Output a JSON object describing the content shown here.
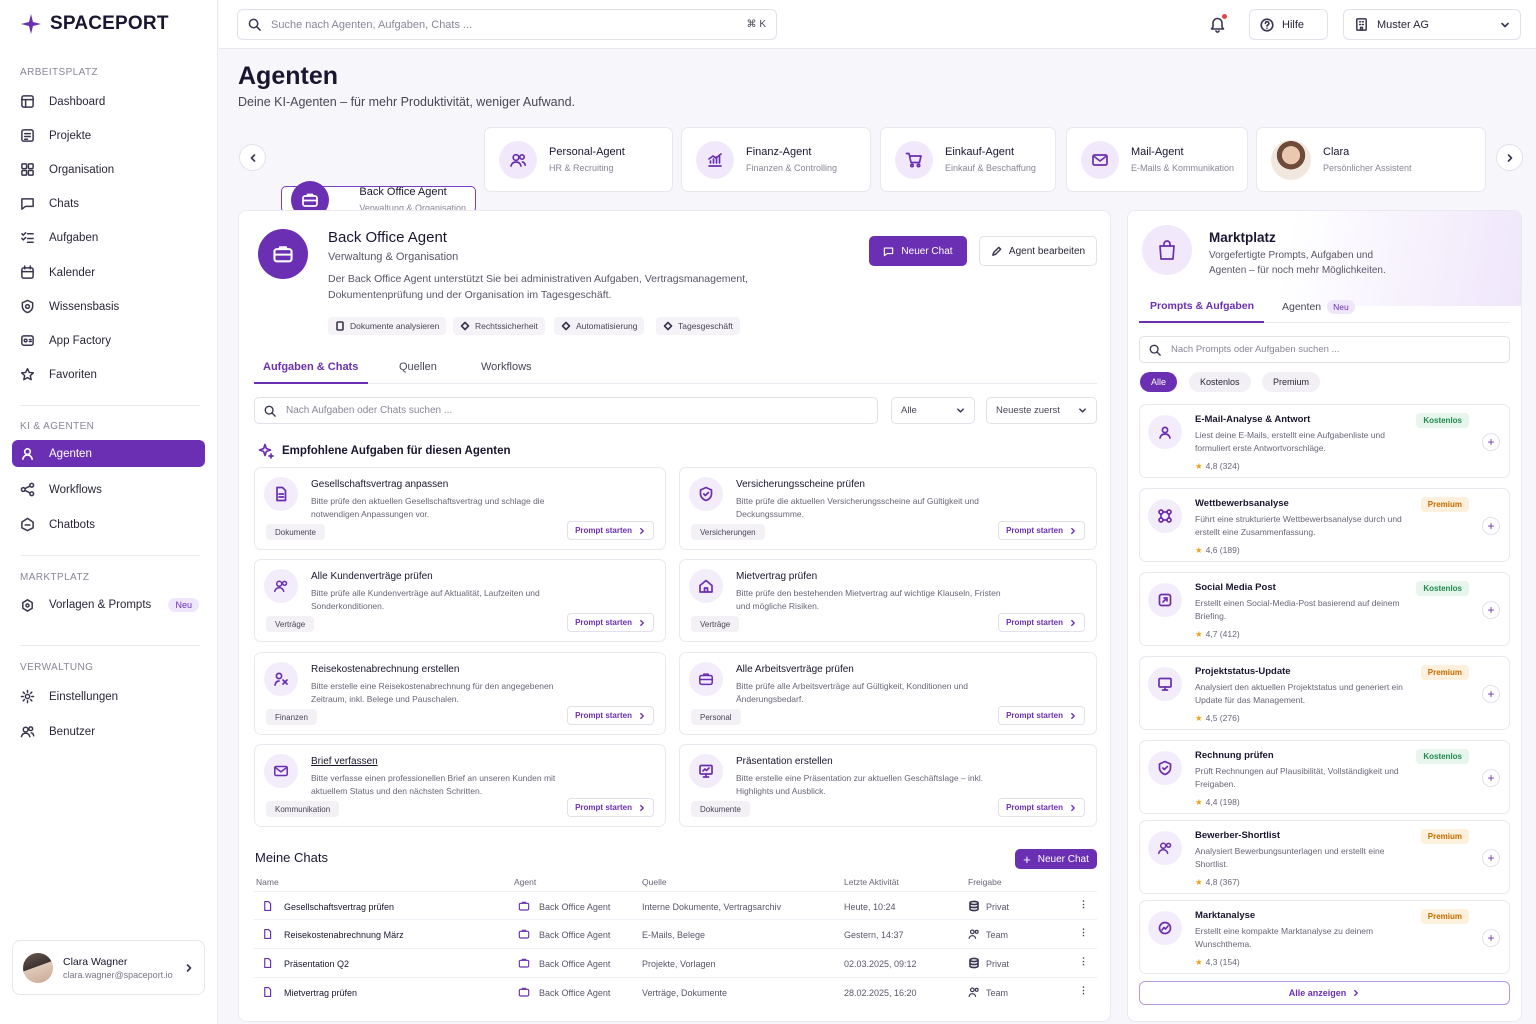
{
  "brand": {
    "name": "SPACEPORT"
  },
  "sidebar": {
    "sections": {
      "workspace": "ARBEITSPLATZ",
      "ai": "KI & AGENTEN",
      "market": "MARKTPLATZ",
      "admin": "VERWALTUNG"
    },
    "items": [
      {
        "label": "Dashboard",
        "icon": "dashboard-icon"
      },
      {
        "label": "Projekte",
        "icon": "folder-icon"
      },
      {
        "label": "Organisation",
        "icon": "organisation-icon"
      },
      {
        "label": "Chats",
        "icon": "chat-icon"
      },
      {
        "label": "Aufgaben",
        "icon": "tasks-icon"
      },
      {
        "label": "Kalender",
        "icon": "calendar-icon"
      },
      {
        "label": "Wissensbasis",
        "icon": "knowledge-icon"
      },
      {
        "label": "App Factory",
        "icon": "app-factory-icon"
      },
      {
        "label": "Favoriten",
        "icon": "star-icon"
      },
      {
        "label": "Agenten",
        "icon": "agent-icon",
        "active": true
      },
      {
        "label": "Workflows",
        "icon": "workflow-icon"
      },
      {
        "label": "Chatbots",
        "icon": "chatbot-icon"
      },
      {
        "label": "Vorlagen & Prompts",
        "icon": "templates-icon",
        "badge": "Neu"
      },
      {
        "label": "Einstellungen",
        "icon": "settings-icon"
      },
      {
        "label": "Benutzer",
        "icon": "users-icon"
      }
    ],
    "user": {
      "name": "Clara Wagner",
      "email": "clara.wagner@spaceport.io"
    }
  },
  "topbar": {
    "search_placeholder": "Suche nach Agenten, Aufgaben, Chats ...",
    "shortcut": "⌘ K",
    "help": "Hilfe",
    "org": "Muster AG"
  },
  "page": {
    "title": "Agenten",
    "subtitle": "Deine KI-Agenten – für mehr Produktivität, weniger Aufwand."
  },
  "agents": [
    {
      "name": "Back Office Agent",
      "desc": "Verwaltung & Organisation",
      "selected": true
    },
    {
      "name": "Personal-Agent",
      "desc": "HR & Recruiting"
    },
    {
      "name": "Finanz-Agent",
      "desc": "Finanzen & Controlling"
    },
    {
      "name": "Einkauf-Agent",
      "desc": "Einkauf & Beschaffung"
    },
    {
      "name": "Mail-Agent",
      "desc": "E-Mails & Kommunikation"
    },
    {
      "name": "Clara",
      "desc": "Persönlicher Assistent"
    }
  ],
  "detail": {
    "title": "Back Office Agent",
    "subtitle": "Verwaltung & Organisation",
    "description": "Der Back Office Agent unterstützt Sie bei administrativen Aufgaben, Vertragsmanagement, Dokumentenprüfung und der Organisation im Tagesgeschäft.",
    "chips": [
      "Dokumente analysieren",
      "Rechtssicherheit",
      "Automatisierung",
      "Tagesgeschäft"
    ],
    "new_chat": "Neuer Chat",
    "edit": "Agent bearbeiten",
    "tabs": [
      "Aufgaben & Chats",
      "Quellen",
      "Workflows"
    ],
    "search_placeholder": "Nach Aufgaben oder Chats suchen ...",
    "filter": "Alle",
    "sort": "Neueste zuerst",
    "recommended_title": "Empfohlene Aufgaben für diesen Agenten",
    "prompt_start": "Prompt starten",
    "tasks": [
      {
        "title": "Gesellschaftsvertrag anpassen",
        "desc": "Bitte prüfe den aktuellen Gesellschaftsvertrag und schlage die notwendigen Anpassungen vor.",
        "tag": "Dokumente"
      },
      {
        "title": "Versicherungsscheine prüfen",
        "desc": "Bitte prüfe die aktuellen Versicherungsscheine auf Gültigkeit und Deckungssumme.",
        "tag": "Versicherungen"
      },
      {
        "title": "Alle Kundenverträge prüfen",
        "desc": "Bitte prüfe alle Kundenverträge auf Aktualität, Laufzeiten und Sonderkonditionen.",
        "tag": "Verträge"
      },
      {
        "title": "Mietvertrag prüfen",
        "desc": "Bitte prüfe den bestehenden Mietvertrag auf wichtige Klauseln, Fristen und mögliche Risiken.",
        "tag": "Verträge"
      },
      {
        "title": "Reisekostenabrechnung erstellen",
        "desc": "Bitte erstelle eine Reisekostenabrechnung für den angegebenen Zeitraum, inkl. Belege und Pauschalen.",
        "tag": "Finanzen"
      },
      {
        "title": "Alle Arbeitsverträge prüfen",
        "desc": "Bitte prüfe alle Arbeitsverträge auf Gültigkeit, Konditionen und Änderungsbedarf.",
        "tag": "Personal"
      },
      {
        "title": "Brief verfassen",
        "desc": "Bitte verfasse einen professionellen Brief an unseren Kunden mit aktuellem Status und den nächsten Schritten.",
        "tag": "Kommunikation"
      },
      {
        "title": "Präsentation erstellen",
        "desc": "Bitte erstelle eine Präsentation zur aktuellen Geschäftslage – inkl. Highlights und Ausblick.",
        "tag": "Dokumente"
      }
    ],
    "chats": {
      "title": "Meine Chats",
      "new_chat": "Neuer Chat",
      "headers": [
        "Name",
        "Agent",
        "Quelle",
        "Letzte Aktivität",
        "Freigabe"
      ],
      "rows": [
        {
          "name": "Gesellschaftsvertrag prüfen",
          "agent": "Back Office Agent",
          "source": "Interne Dokumente, Vertragsarchiv",
          "activity": "Heute, 10:24",
          "share": "Privat"
        },
        {
          "name": "Reisekostenabrechnung März",
          "agent": "Back Office Agent",
          "source": "E-Mails, Belege",
          "activity": "Gestern, 14:37",
          "share": "Team"
        },
        {
          "name": "Präsentation Q2",
          "agent": "Back Office Agent",
          "source": "Projekte, Vorlagen",
          "activity": "02.03.2025, 09:12",
          "share": "Privat"
        },
        {
          "name": "Mietvertrag prüfen",
          "agent": "Back Office Agent",
          "source": "Verträge, Dokumente",
          "activity": "28.02.2025, 16:20",
          "share": "Team"
        }
      ]
    }
  },
  "market": {
    "title": "Marktplatz",
    "description": "Vorgefertigte Prompts, Aufgaben und Agenten – für noch mehr Möglichkeiten.",
    "tabs": [
      "Prompts & Aufgaben",
      "Agenten"
    ],
    "tab_badge": "Neu",
    "search_placeholder": "Nach Prompts oder Aufgaben suchen ...",
    "filters": [
      "Alle",
      "Kostenlos",
      "Premium"
    ],
    "items": [
      {
        "title": "E-Mail-Analyse & Antwort",
        "desc": "Liest deine E-Mails, erstellt eine Aufgabenliste und formuliert erste Antwortvorschläge.",
        "rating": "4,8 (324)",
        "label": "Kostenlos",
        "type": "free"
      },
      {
        "title": "Wettbewerbsanalyse",
        "desc": "Führt eine strukturierte Wettbewerbsanalyse durch und erstellt eine Zusammenfassung.",
        "rating": "4,6 (189)",
        "label": "Premium",
        "type": "prem"
      },
      {
        "title": "Social Media Post",
        "desc": "Erstellt einen Social-Media-Post basierend auf deinem Briefing.",
        "rating": "4,7 (412)",
        "label": "Kostenlos",
        "type": "free"
      },
      {
        "title": "Projektstatus-Update",
        "desc": "Analysiert den aktuellen Projektstatus und generiert ein Update für das Management.",
        "rating": "4,5 (276)",
        "label": "Premium",
        "type": "prem"
      },
      {
        "title": "Rechnung prüfen",
        "desc": "Prüft Rechnungen auf Plausibilität, Vollständigkeit und Freigaben.",
        "rating": "4,4 (198)",
        "label": "Kostenlos",
        "type": "free"
      },
      {
        "title": "Bewerber-Shortlist",
        "desc": "Analysiert Bewerbungsunterlagen und erstellt eine Shortlist.",
        "rating": "4,8 (367)",
        "label": "Premium",
        "type": "prem"
      },
      {
        "title": "Marktanalyse",
        "desc": "Erstellt eine kompakte Marktanalyse zu deinem Wunschthema.",
        "rating": "4,3 (154)",
        "label": "Premium",
        "type": "prem"
      }
    ],
    "show_all": "Alle anzeigen"
  },
  "colors": {
    "accent": "#6b2fb3",
    "free": "#1f8a4c",
    "premium": "#c46a00"
  }
}
